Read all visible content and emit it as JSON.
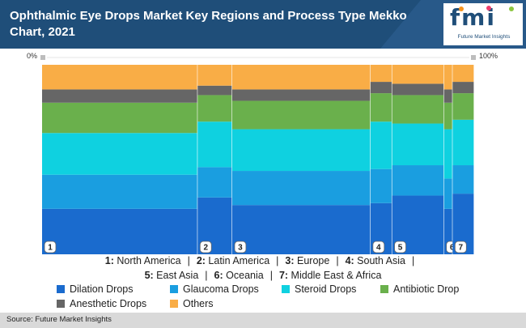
{
  "header": {
    "title": "Ophthalmic Eye Drops Market Key Regions and Process Type Mekko Chart, 2021",
    "logo_text": "fmi",
    "logo_subtext": "Future Market Insights"
  },
  "axis": {
    "left_label": "0%",
    "right_label": "100%"
  },
  "chart_data": {
    "type": "mekko",
    "title": "Ophthalmic Eye Drops Market Key Regions and Process Type Mekko Chart, 2021",
    "x_unit": "% share of market (column width)",
    "y_unit": "% share within region (stack height)",
    "series_names": [
      "Dilation Drops",
      "Glaucoma Drops",
      "Steroid Drops",
      "Antibiotic Drop",
      "Anesthetic Drops",
      "Others"
    ],
    "series_colors": [
      "#1a6bce",
      "#1a9ee0",
      "#0fd1e0",
      "#6ab04c",
      "#666666",
      "#f9ad46"
    ],
    "regions": [
      {
        "id": "1",
        "name": "North America",
        "width": 36,
        "values": [
          24,
          18,
          22,
          16,
          7,
          13
        ]
      },
      {
        "id": "2",
        "name": "Latin America",
        "width": 8,
        "values": [
          30,
          16,
          24,
          14,
          5,
          11
        ]
      },
      {
        "id": "3",
        "name": "Europe",
        "width": 32,
        "values": [
          26,
          18,
          22,
          15,
          6,
          13
        ]
      },
      {
        "id": "4",
        "name": "South Asia",
        "width": 5,
        "values": [
          27,
          18,
          25,
          15,
          6,
          9
        ]
      },
      {
        "id": "5",
        "name": "East Asia",
        "width": 12,
        "values": [
          31,
          16,
          22,
          15,
          6,
          10
        ]
      },
      {
        "id": "6",
        "name": "Oceania",
        "width": 2,
        "values": [
          24,
          16,
          26,
          14,
          7,
          13
        ]
      },
      {
        "id": "7",
        "name": "Middle East & Africa",
        "width": 5,
        "values": [
          32,
          15,
          24,
          14,
          6,
          9
        ]
      }
    ]
  },
  "legend": {
    "regions_line1": [
      {
        "num": "1:",
        "name": "North America"
      },
      {
        "num": "2:",
        "name": "Latin America"
      },
      {
        "num": "3:",
        "name": "Europe"
      },
      {
        "num": "4:",
        "name": "South Asia"
      }
    ],
    "regions_line2": [
      {
        "num": "5:",
        "name": "East Asia"
      },
      {
        "num": "6:",
        "name": "Oceania"
      },
      {
        "num": "7:",
        "name": "Middle East & Africa"
      }
    ],
    "separator": "|"
  },
  "footer": {
    "source": "Source: Future Market Insights"
  }
}
